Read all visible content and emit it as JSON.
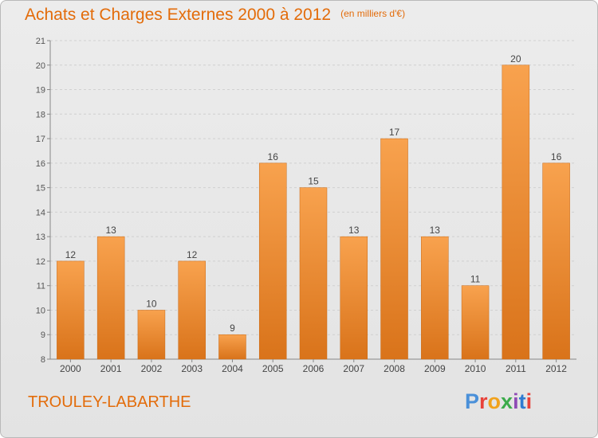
{
  "title": "Achats et Charges Externes 2000 à 2012",
  "unit": "(en milliers d'€)",
  "place": "TROULEY-LABARTHE",
  "logo": "Proxiti",
  "colors": {
    "accent": "#e36c0a",
    "bar_top": "#f8a24e",
    "bar_bottom": "#d9731a",
    "background": "#e8e8e8",
    "logo": [
      "#4a90d9",
      "#e8423a",
      "#f1a21c",
      "#3bab4b",
      "#8f4bb5",
      "#2f7bd1",
      "#e8423a"
    ]
  },
  "chart_data": {
    "type": "bar",
    "title": "Achats et Charges Externes 2000 à 2012",
    "subtitle": "(en milliers d'€)",
    "categories": [
      "2000",
      "2001",
      "2002",
      "2003",
      "2004",
      "2005",
      "2006",
      "2007",
      "2008",
      "2009",
      "2010",
      "2011",
      "2012"
    ],
    "values": [
      12,
      13,
      10,
      12,
      9,
      16,
      15,
      13,
      17,
      13,
      11,
      20,
      16
    ],
    "ylim": [
      8,
      21
    ],
    "yticks": [
      8,
      9,
      10,
      11,
      12,
      13,
      14,
      15,
      16,
      17,
      18,
      19,
      20,
      21
    ],
    "grid": true,
    "data_labels": true
  }
}
